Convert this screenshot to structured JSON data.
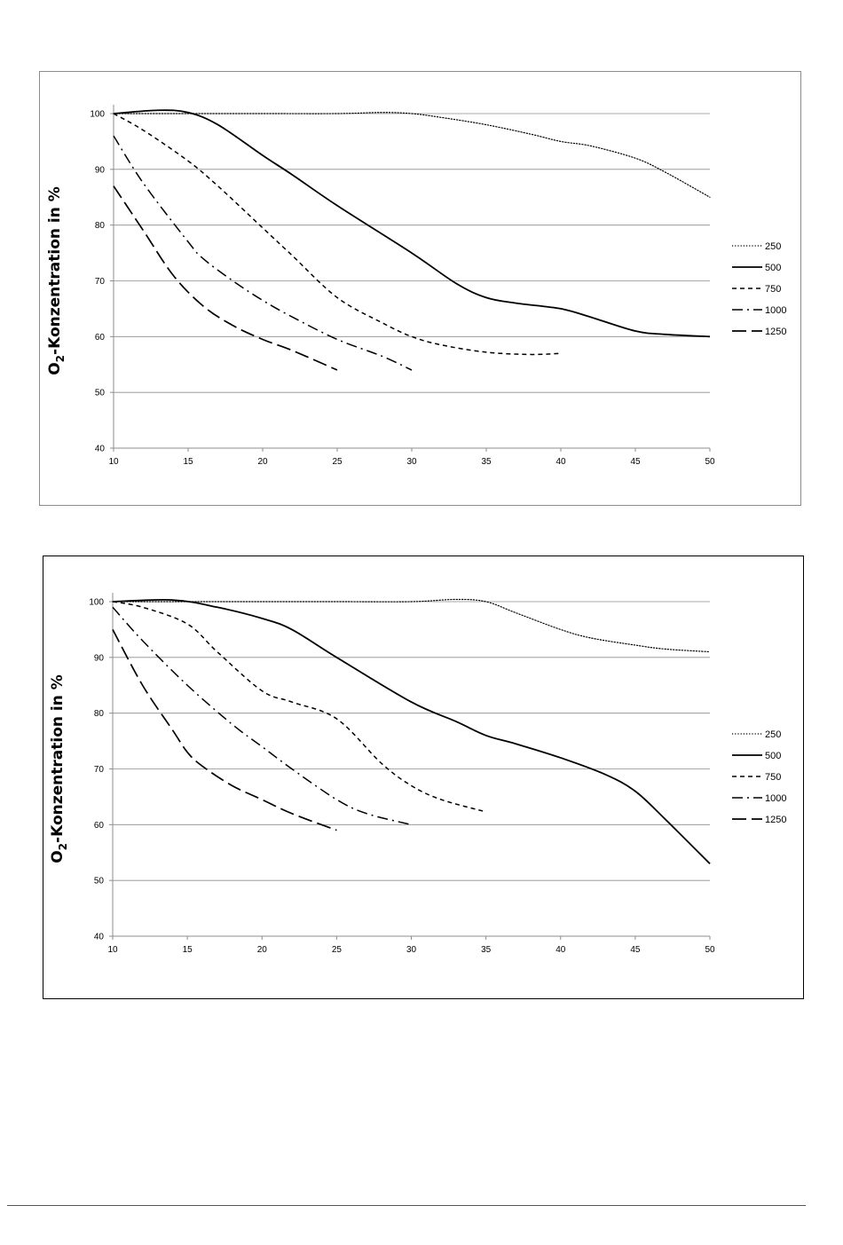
{
  "chart_data": [
    {
      "type": "line",
      "ylabel": "O2-Konzentration in %",
      "ylabel_parts": {
        "base": "O",
        "sub": "2",
        "rest": "-Konzentration in %"
      },
      "xlim": [
        10,
        50
      ],
      "ylim": [
        40,
        100
      ],
      "xticks": [
        10,
        15,
        20,
        25,
        30,
        35,
        40,
        45,
        50
      ],
      "yticks": [
        40,
        50,
        60,
        70,
        80,
        90,
        100
      ],
      "grid": "horizontal",
      "legend": "right",
      "series": [
        {
          "name": "250",
          "style": "dotted",
          "x": [
            10,
            15,
            20,
            25,
            28,
            30,
            32,
            35,
            38,
            40,
            42,
            45,
            47,
            50
          ],
          "y": [
            100,
            100,
            100,
            100,
            100.2,
            100,
            99.3,
            98,
            96.3,
            95,
            94.2,
            92,
            89.5,
            85
          ]
        },
        {
          "name": "500",
          "style": "solid",
          "x": [
            10,
            13,
            15,
            17,
            20,
            22,
            25,
            30,
            33,
            35,
            37,
            40,
            42,
            45,
            47,
            50
          ],
          "y": [
            100,
            100.6,
            100.2,
            98,
            92.5,
            89,
            83.5,
            75,
            69.5,
            67,
            66,
            65,
            63.5,
            61,
            60.4,
            60
          ]
        },
        {
          "name": "750",
          "style": "dashed",
          "x": [
            10,
            12,
            15,
            17,
            20,
            22,
            25,
            28,
            30,
            32,
            35,
            38,
            40
          ],
          "y": [
            100,
            97,
            91.5,
            87,
            79.5,
            74.5,
            67,
            62.5,
            60,
            58.5,
            57.2,
            56.8,
            57
          ]
        },
        {
          "name": "1000",
          "style": "dashdot",
          "x": [
            10,
            12,
            15,
            16,
            18,
            20,
            22,
            25,
            28,
            30
          ],
          "y": [
            96,
            87.5,
            77,
            74,
            70,
            66.5,
            63.5,
            59.5,
            56.5,
            54
          ]
        },
        {
          "name": "1250",
          "style": "longdash",
          "x": [
            10,
            12,
            14,
            16,
            18,
            20,
            22,
            25
          ],
          "y": [
            87,
            79,
            71,
            65.5,
            62,
            59.5,
            57.5,
            54
          ]
        }
      ]
    },
    {
      "type": "line",
      "ylabel": "O2-Konzentration in %",
      "ylabel_parts": {
        "base": "O",
        "sub": "2",
        "rest": "-Konzentration in %"
      },
      "xlim": [
        10,
        50
      ],
      "ylim": [
        40,
        100
      ],
      "xticks": [
        10,
        15,
        20,
        25,
        30,
        35,
        40,
        45,
        50
      ],
      "yticks": [
        40,
        50,
        60,
        70,
        80,
        90,
        100
      ],
      "grid": "horizontal",
      "legend": "right",
      "series": [
        {
          "name": "250",
          "style": "dotted",
          "x": [
            10,
            15,
            20,
            25,
            30,
            33,
            35,
            37,
            40,
            42,
            45,
            47,
            50
          ],
          "y": [
            100,
            100,
            100,
            100,
            100,
            100.4,
            100,
            98,
            95,
            93.5,
            92.2,
            91.5,
            91
          ]
        },
        {
          "name": "500",
          "style": "solid",
          "x": [
            10,
            14,
            17,
            20,
            22,
            25,
            30,
            33,
            35,
            37,
            40,
            43,
            45,
            47,
            50
          ],
          "y": [
            100,
            100.3,
            99,
            97,
            95,
            90,
            82,
            78.5,
            76,
            74.5,
            72,
            69,
            66,
            61,
            53
          ]
        },
        {
          "name": "750",
          "style": "dashed",
          "x": [
            10,
            12,
            15,
            17,
            20,
            22,
            25,
            28,
            30,
            32,
            35
          ],
          "y": [
            100,
            99,
            96,
            91,
            84,
            82,
            79,
            71,
            67,
            64.5,
            62.3
          ]
        },
        {
          "name": "1000",
          "style": "dashdot",
          "x": [
            10,
            12,
            15,
            18,
            20,
            22,
            25,
            27,
            30
          ],
          "y": [
            99,
            93,
            85,
            78,
            74,
            70,
            64.5,
            62,
            60
          ]
        },
        {
          "name": "1250",
          "style": "longdash",
          "x": [
            10,
            12,
            14,
            15,
            16,
            18,
            20,
            22,
            25
          ],
          "y": [
            95,
            85,
            77,
            73,
            70.5,
            67,
            64.5,
            62,
            59
          ]
        }
      ]
    }
  ]
}
